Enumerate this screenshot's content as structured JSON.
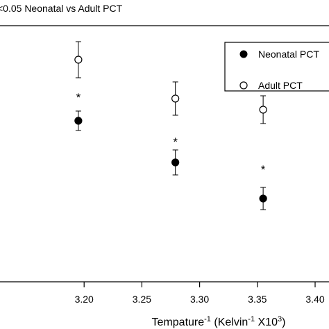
{
  "chart_data": {
    "type": "scatter",
    "annotation": "<0.05 Neonatal vs Adult PCT",
    "xlabel": {
      "base": "Tempature",
      "base_sup": "-1",
      "unit_open": " (Kelvin",
      "unit_sup": "-1",
      "unit_mid": " X10",
      "unit_sup2": "3",
      "unit_close": ")"
    },
    "xlim": [
      3.15,
      3.4
    ],
    "xticks": [
      "3.20",
      "3.25",
      "3.30",
      "3.35",
      "3.40"
    ],
    "ylabel": "",
    "grid": false,
    "legend_position": "top-right",
    "significance_marker": "*",
    "series": [
      {
        "name": "Neonatal PCT",
        "marker": "filled-circle",
        "color": "#000000",
        "points": [
          {
            "x": 3.195,
            "y": 0.58,
            "err": 0.035
          },
          {
            "x": 3.279,
            "y": 0.43,
            "err": 0.045
          },
          {
            "x": 3.355,
            "y": 0.3,
            "err": 0.04
          }
        ]
      },
      {
        "name": "Adult PCT",
        "marker": "open-circle",
        "color": "#000000",
        "points": [
          {
            "x": 3.195,
            "y": 0.8,
            "err": 0.065
          },
          {
            "x": 3.279,
            "y": 0.66,
            "err": 0.06
          },
          {
            "x": 3.355,
            "y": 0.62,
            "err": 0.05
          }
        ]
      }
    ],
    "significance": [
      {
        "x": 3.195,
        "y": 0.67
      },
      {
        "x": 3.279,
        "y": 0.51
      },
      {
        "x": 3.355,
        "y": 0.41
      }
    ]
  }
}
